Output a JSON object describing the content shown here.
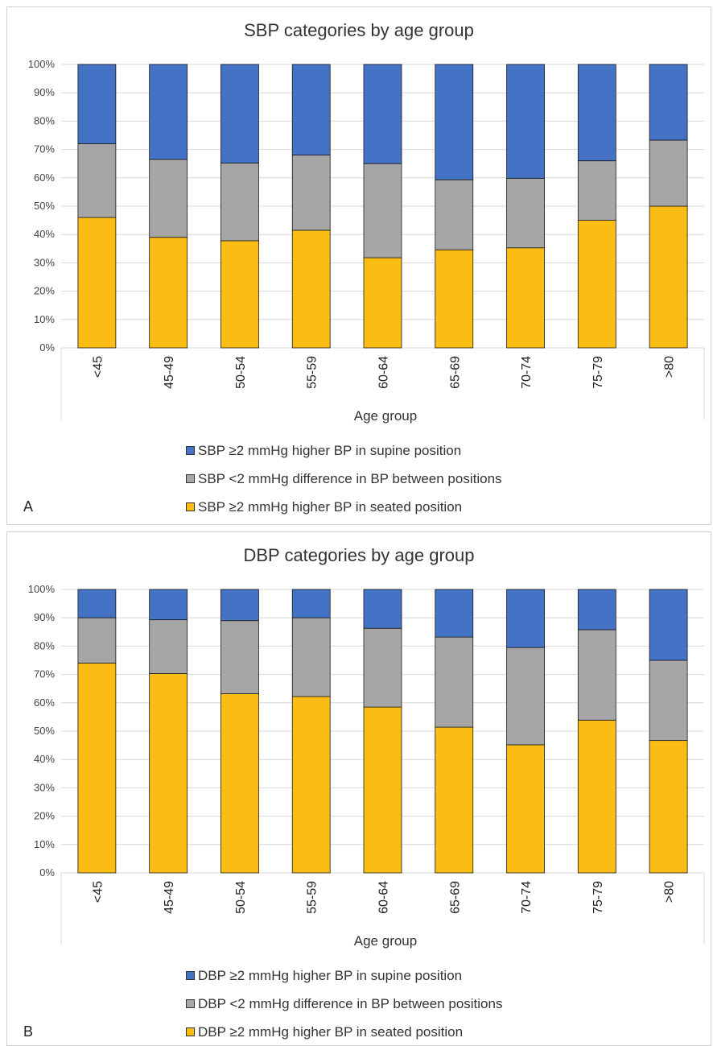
{
  "chart_data": [
    {
      "type": "bar",
      "stacked": "percent",
      "panel_label": "A",
      "title": "SBP categories by age group",
      "xlabel": "Age group",
      "ylabel": "",
      "ylim": [
        0,
        100
      ],
      "y_ticks": [
        "0%",
        "10%",
        "20%",
        "30%",
        "40%",
        "50%",
        "60%",
        "70%",
        "80%",
        "90%",
        "100%"
      ],
      "grid": true,
      "legend_position": "bottom",
      "categories": [
        "<45",
        "45-49",
        "50-54",
        "55-59",
        "60-64",
        "65-69",
        "70-74",
        "75-79",
        ">80"
      ],
      "series": [
        {
          "name": "SBP  ≥2 mmHg higher BP in seated position",
          "color": "#fbbd13",
          "values": [
            46,
            39,
            37.8,
            41.5,
            31.8,
            34.6,
            35.3,
            45,
            50
          ]
        },
        {
          "name": "SBP  <2 mmHg difference in BP between positions",
          "color": "#a6a6a6",
          "values": [
            26,
            27.5,
            27.4,
            26.5,
            33.2,
            24.7,
            24.5,
            21,
            23.3
          ]
        },
        {
          "name": "SBP  ≥2 mmHg higher BP in supine position",
          "color": "#4472c4",
          "values": [
            28,
            33.5,
            34.8,
            32,
            35,
            40.7,
            40.2,
            34,
            26.7
          ]
        }
      ]
    },
    {
      "type": "bar",
      "stacked": "percent",
      "panel_label": "B",
      "title": "DBP categories by age group",
      "xlabel": "Age group",
      "ylabel": "",
      "ylim": [
        0,
        100
      ],
      "y_ticks": [
        "0%",
        "10%",
        "20%",
        "30%",
        "40%",
        "50%",
        "60%",
        "70%",
        "80%",
        "90%",
        "100%"
      ],
      "grid": true,
      "legend_position": "bottom",
      "categories": [
        "<45",
        "45-49",
        "50-54",
        "55-59",
        "60-64",
        "65-69",
        "70-74",
        "75-79",
        ">80"
      ],
      "series": [
        {
          "name": "DBP  ≥2 mmHg higher BP in seated position",
          "color": "#fbbd13",
          "values": [
            74,
            70.3,
            63.2,
            62.2,
            58.5,
            51.4,
            45.2,
            53.9,
            46.7
          ]
        },
        {
          "name": "DBP  <2 mmHg difference in BP between positions",
          "color": "#a6a6a6",
          "values": [
            16,
            19,
            25.8,
            27.8,
            27.8,
            31.8,
            34.3,
            31.9,
            28.3
          ]
        },
        {
          "name": "DBP  ≥2 mmHg higher BP in supine position",
          "color": "#4472c4",
          "values": [
            10,
            10.7,
            11,
            10,
            13.7,
            16.8,
            20.5,
            14.2,
            25
          ]
        }
      ]
    }
  ]
}
